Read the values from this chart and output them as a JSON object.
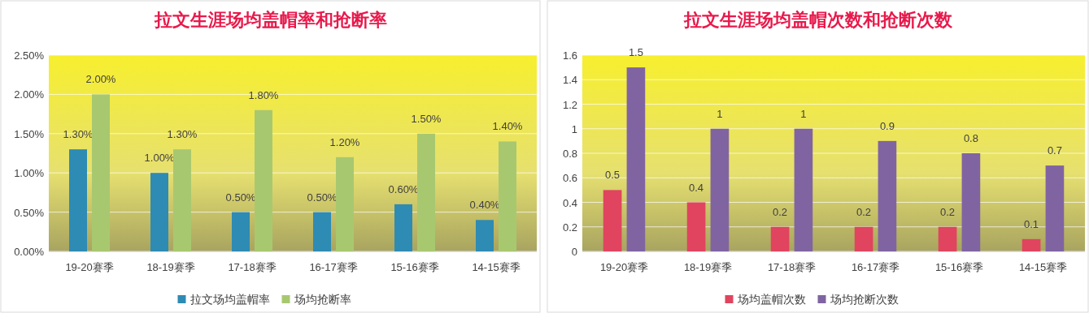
{
  "chart_data": [
    {
      "type": "bar",
      "title": "拉文生涯场均盖帽率和抢断率",
      "categories": [
        "19-20赛季",
        "18-19赛季",
        "17-18赛季",
        "16-17赛季",
        "15-16赛季",
        "14-15赛季"
      ],
      "series": [
        {
          "name": "拉文场均盖帽率",
          "color": "#2e8bb3",
          "values": [
            1.3,
            1.0,
            0.5,
            0.5,
            0.6,
            0.4
          ],
          "value_labels": [
            "1.30%",
            "1.00%",
            "0.50%",
            "0.50%",
            "0.60%",
            "0.40%"
          ]
        },
        {
          "name": "场均抢断率",
          "color": "#a8c870",
          "values": [
            2.0,
            1.3,
            1.8,
            1.2,
            1.5,
            1.4
          ],
          "value_labels": [
            "2.00%",
            "1.30%",
            "1.80%",
            "1.20%",
            "1.50%",
            "1.40%"
          ]
        }
      ],
      "ylim": [
        0,
        2.5
      ],
      "yticks": [
        {
          "value": 0,
          "label": "0.00%"
        },
        {
          "value": 0.5,
          "label": "0.50%"
        },
        {
          "value": 1,
          "label": "1.00%"
        },
        {
          "value": 1.5,
          "label": "1.50%"
        },
        {
          "value": 2,
          "label": "2.00%"
        },
        {
          "value": 2.5,
          "label": "2.50%"
        }
      ],
      "grid": "y",
      "legend": "bottom"
    },
    {
      "type": "bar",
      "title": "拉文生涯场均盖帽次数和抢断次数",
      "categories": [
        "19-20赛季",
        "18-19赛季",
        "17-18赛季",
        "16-17赛季",
        "15-16赛季",
        "14-15赛季"
      ],
      "series": [
        {
          "name": "场均盖帽次数",
          "color": "#e0445f",
          "values": [
            0.5,
            0.4,
            0.2,
            0.2,
            0.2,
            0.1
          ]
        },
        {
          "name": "场均抢断次数",
          "color": "#8064a2",
          "values": [
            1.5,
            1,
            1,
            0.9,
            0.8,
            0.7
          ]
        }
      ],
      "ylim": [
        0,
        1.6
      ],
      "yticks": [
        0,
        0.2,
        0.4,
        0.6,
        0.8,
        1,
        1.2,
        1.4,
        1.6
      ],
      "grid": "y",
      "legend": "bottom",
      "data_labels": true
    }
  ]
}
